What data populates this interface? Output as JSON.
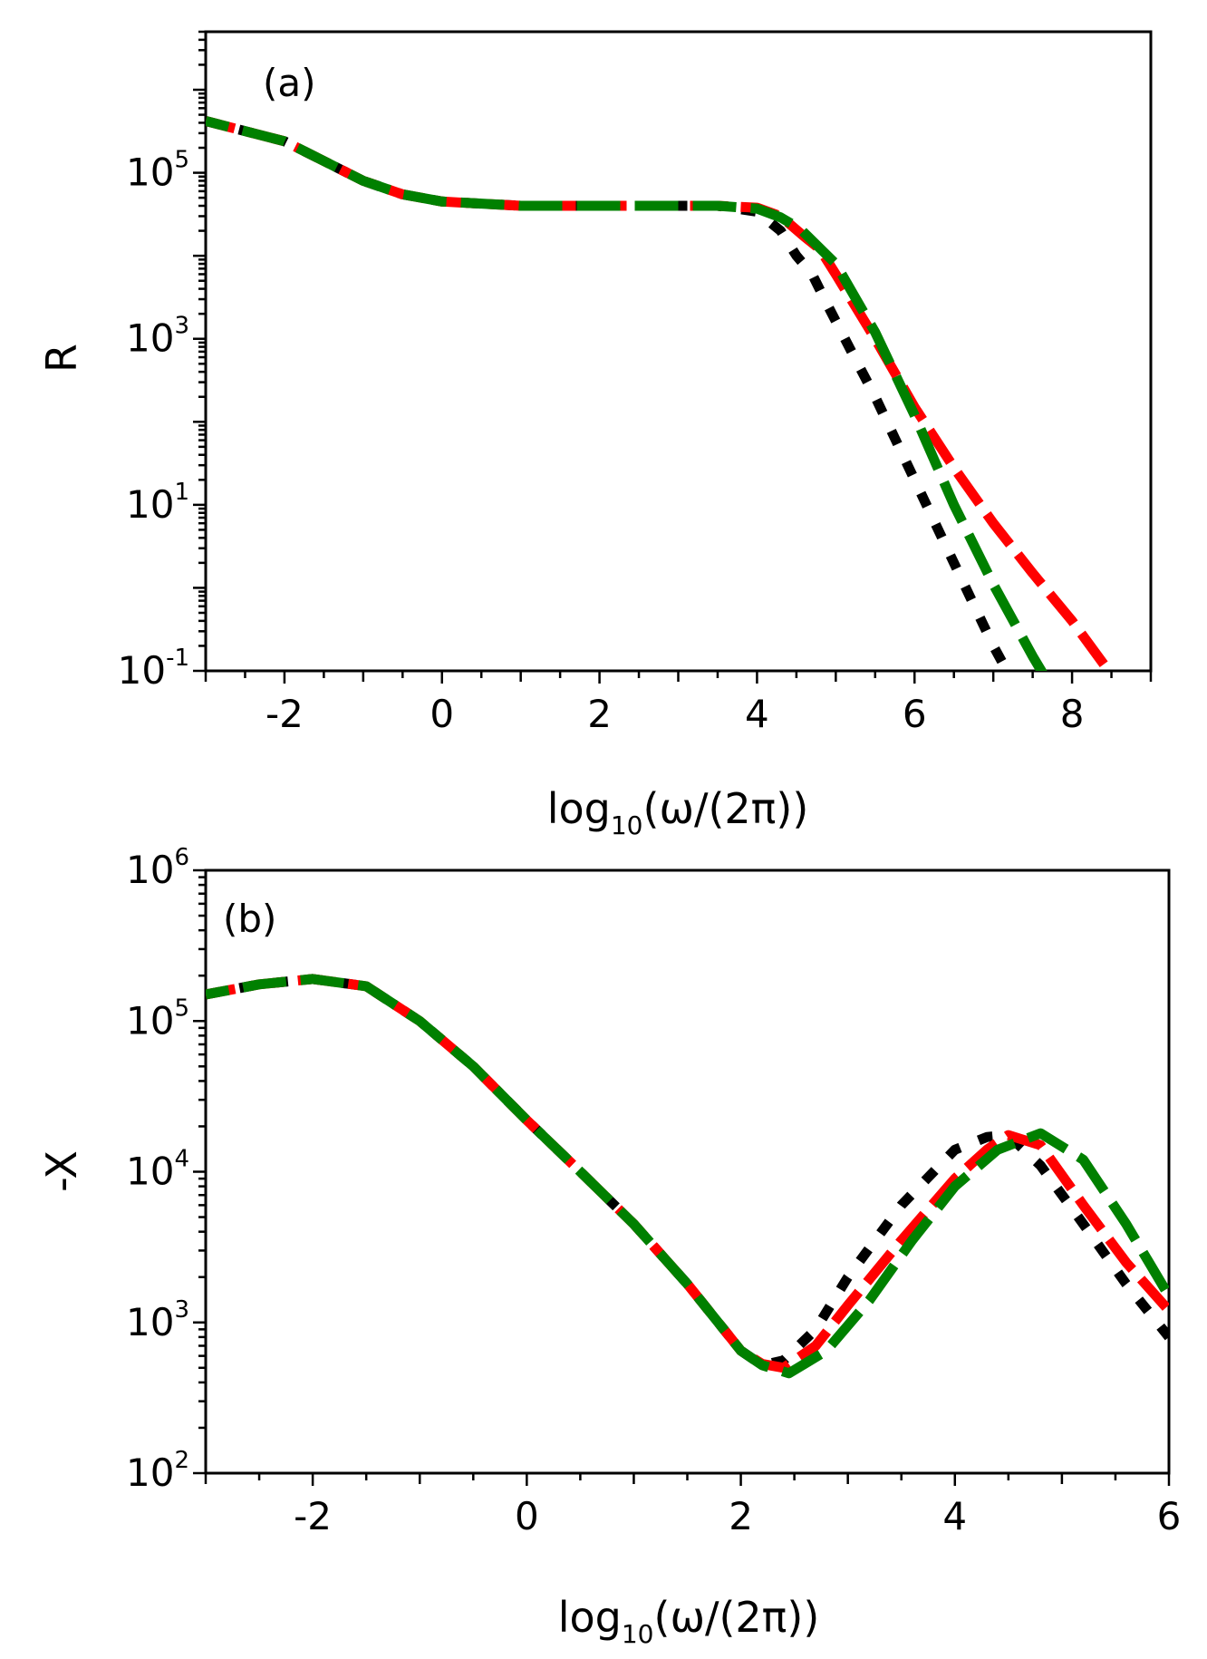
{
  "chart_data": [
    {
      "type": "line",
      "panel_label": "(a)",
      "xlabel_main": "log",
      "xlabel_sub": "10",
      "xlabel_rest": "(ω/(2π))",
      "ylabel": "R",
      "yscale": "log",
      "xlim": [
        -3,
        9
      ],
      "ylim": [
        0.1,
        5000000
      ],
      "x_ticks": [
        {
          "value": -2,
          "label": "-2"
        },
        {
          "value": 0,
          "label": "0"
        },
        {
          "value": 2,
          "label": "2"
        },
        {
          "value": 4,
          "label": "4"
        },
        {
          "value": 6,
          "label": "6"
        },
        {
          "value": 8,
          "label": "8"
        }
      ],
      "y_ticks": [
        {
          "value": 100000,
          "base": "10",
          "exp": "5"
        },
        {
          "value": 1000,
          "base": "10",
          "exp": "3"
        },
        {
          "value": 10,
          "base": "10",
          "exp": "1"
        },
        {
          "value": 0.1,
          "base": "10",
          "exp": "-1"
        }
      ],
      "series": [
        {
          "name": "black",
          "color": "#000000",
          "x": [
            -3,
            -2,
            -1,
            -0.5,
            0,
            1,
            2,
            3,
            3.5,
            4,
            4.3,
            4.5,
            4.7,
            4.9,
            5.2,
            5.5,
            6,
            6.5,
            7,
            7.3
          ],
          "y": [
            420000,
            240000,
            80000,
            55000,
            45000,
            40000,
            40000,
            40000,
            40000,
            34000,
            20000,
            10000,
            6000,
            2500,
            700,
            200,
            20,
            2,
            0.2,
            0.06
          ]
        },
        {
          "name": "red",
          "color": "#ff0000",
          "x": [
            -3,
            -2,
            -1,
            -0.5,
            0,
            1,
            2,
            3,
            3.5,
            4,
            4.3,
            4.6,
            4.8,
            5,
            5.5,
            6,
            6.5,
            7,
            7.5,
            8,
            8.5
          ],
          "y": [
            420000,
            240000,
            80000,
            55000,
            45000,
            40000,
            40000,
            40000,
            40000,
            38000,
            30000,
            17000,
            12000,
            6000,
            1000,
            150,
            28,
            6,
            1.5,
            0.4,
            0.09
          ]
        },
        {
          "name": "green",
          "color": "#008000",
          "x": [
            -3,
            -2,
            -1,
            -0.5,
            0,
            1,
            2,
            3,
            3.5,
            4,
            4.3,
            4.55,
            5,
            5.5,
            6,
            6.5,
            7,
            7.5,
            7.8
          ],
          "y": [
            420000,
            240000,
            80000,
            55000,
            45000,
            40000,
            40000,
            40000,
            40000,
            37000,
            29000,
            21000,
            8000,
            1200,
            120,
            10,
            1.1,
            0.15,
            0.05
          ]
        }
      ]
    },
    {
      "type": "line",
      "panel_label": "(b)",
      "xlabel_main": "log",
      "xlabel_sub": "10",
      "xlabel_rest": "(ω/(2π))",
      "ylabel": "-X",
      "yscale": "log",
      "xlim": [
        -3,
        6
      ],
      "ylim": [
        100,
        1000000
      ],
      "x_ticks": [
        {
          "value": -2,
          "label": "-2"
        },
        {
          "value": 0,
          "label": "0"
        },
        {
          "value": 2,
          "label": "2"
        },
        {
          "value": 4,
          "label": "4"
        },
        {
          "value": 6,
          "label": "6"
        }
      ],
      "y_ticks": [
        {
          "value": 1000000,
          "base": "10",
          "exp": "6"
        },
        {
          "value": 100000,
          "base": "10",
          "exp": "5"
        },
        {
          "value": 10000,
          "base": "10",
          "exp": "4"
        },
        {
          "value": 1000,
          "base": "10",
          "exp": "3"
        },
        {
          "value": 100,
          "base": "10",
          "exp": "2"
        }
      ],
      "series": [
        {
          "name": "black",
          "color": "#000000",
          "x": [
            -3,
            -2.5,
            -2,
            -1.5,
            -1,
            -0.5,
            0,
            0.5,
            1,
            1.5,
            2,
            2.2,
            2.4,
            2.7,
            3,
            3.5,
            4,
            4.3,
            4.5,
            4.8,
            5.2,
            5.6,
            6
          ],
          "y": [
            150000,
            175000,
            190000,
            170000,
            100000,
            50000,
            22000,
            10000,
            4500,
            1800,
            650,
            520,
            560,
            900,
            2000,
            6000,
            14000,
            17000,
            17500,
            11000,
            4500,
            1800,
            800
          ]
        },
        {
          "name": "red",
          "color": "#ff0000",
          "x": [
            -3,
            -2.5,
            -2,
            -1.5,
            -1,
            -0.5,
            0,
            0.5,
            1,
            1.5,
            2,
            2.2,
            2.4,
            2.7,
            3,
            3.5,
            4,
            4.3,
            4.5,
            4.8,
            5.2,
            5.6,
            6
          ],
          "y": [
            150000,
            175000,
            190000,
            170000,
            100000,
            50000,
            22000,
            10000,
            4500,
            1800,
            650,
            530,
            500,
            700,
            1300,
            3500,
            9000,
            14000,
            17500,
            15000,
            6000,
            2500,
            1200
          ]
        },
        {
          "name": "green",
          "color": "#008000",
          "x": [
            -3,
            -2.5,
            -2,
            -1.5,
            -1,
            -0.5,
            0,
            0.5,
            1,
            1.5,
            2,
            2.2,
            2.45,
            2.8,
            3.2,
            3.6,
            4,
            4.4,
            4.8,
            5.2,
            5.6,
            6
          ],
          "y": [
            150000,
            175000,
            190000,
            170000,
            100000,
            50000,
            22000,
            10000,
            4500,
            1800,
            650,
            520,
            460,
            650,
            1400,
            3500,
            8000,
            14000,
            18000,
            12000,
            4500,
            1500
          ]
        }
      ]
    }
  ]
}
